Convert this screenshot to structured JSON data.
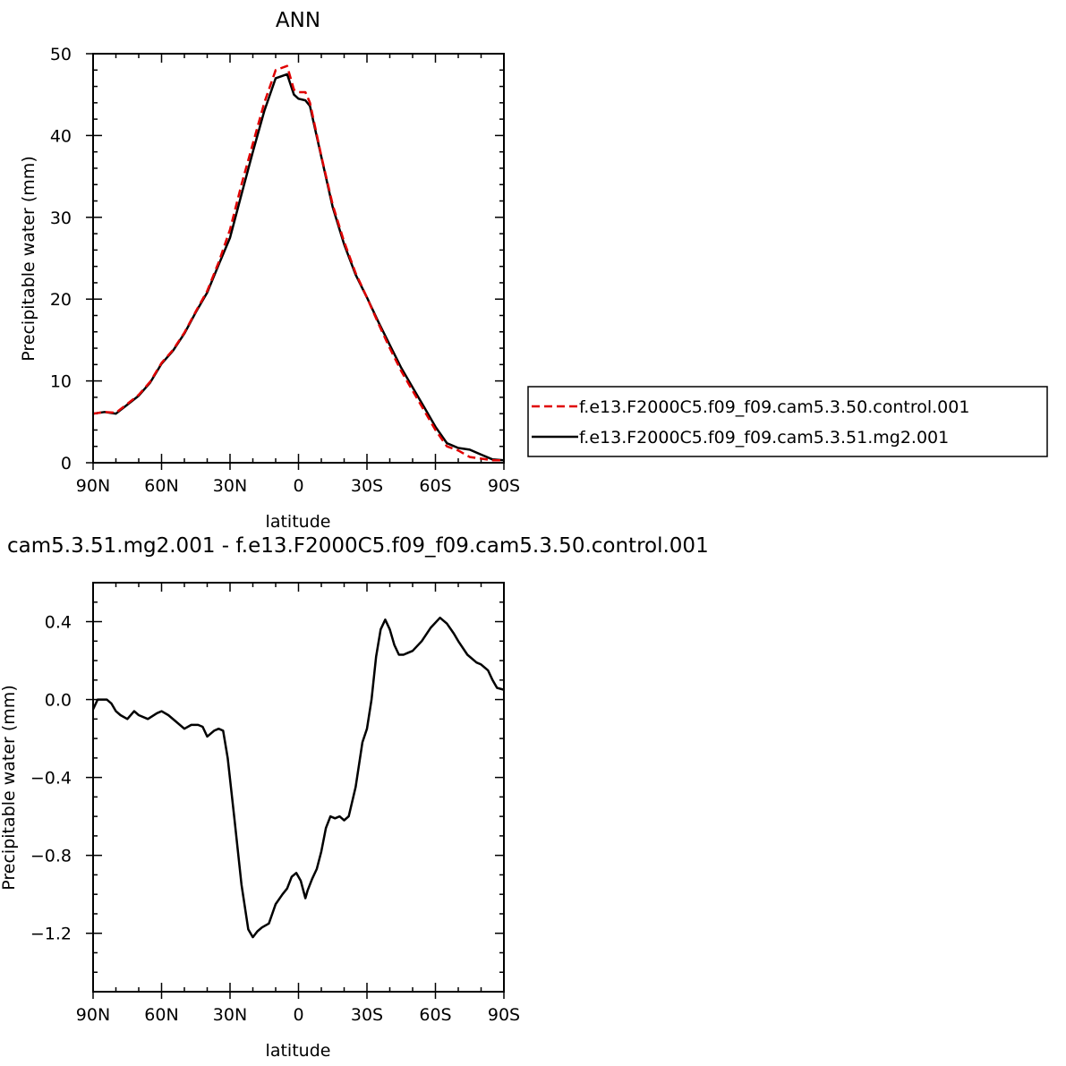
{
  "figure": {
    "top_title": "ANN",
    "bottom_title": "cam5.3.51.mg2.001 - f.e13.F2000C5.f09_f09.cam5.3.50.control.001"
  },
  "colors": {
    "control": "#e00000",
    "mg2": "#000000",
    "axis": "#000000"
  },
  "chart_data": [
    {
      "type": "line",
      "title": "ANN",
      "xlabel": "latitude",
      "ylabel": "Precipitable water (mm)",
      "xlim": [
        90,
        -90
      ],
      "ylim": [
        0,
        50
      ],
      "x_ticks": [
        {
          "v": 90,
          "label": "90N"
        },
        {
          "v": 60,
          "label": "60N"
        },
        {
          "v": 30,
          "label": "30N"
        },
        {
          "v": 0,
          "label": "0"
        },
        {
          "v": -30,
          "label": "30S"
        },
        {
          "v": -60,
          "label": "60S"
        },
        {
          "v": -90,
          "label": "90S"
        }
      ],
      "y_ticks": [
        {
          "v": 0,
          "label": "0"
        },
        {
          "v": 10,
          "label": "10"
        },
        {
          "v": 20,
          "label": "20"
        },
        {
          "v": 30,
          "label": "30"
        },
        {
          "v": 40,
          "label": "40"
        },
        {
          "v": 50,
          "label": "50"
        }
      ],
      "legend_position": "right",
      "series": [
        {
          "name": "f.e13.F2000C5.f09_f09.cam5.3.50.control.001",
          "color": "#e00000",
          "dash": "dashed",
          "x": [
            90,
            85,
            80,
            75,
            70,
            65,
            60,
            55,
            50,
            45,
            40,
            35,
            30,
            25,
            20,
            15,
            10,
            5,
            2,
            0,
            -3,
            -5,
            -10,
            -15,
            -20,
            -25,
            -30,
            -35,
            -40,
            -45,
            -50,
            -55,
            -60,
            -65,
            -70,
            -75,
            -80,
            -85,
            -90
          ],
          "y": [
            6.0,
            6.2,
            6.1,
            7.2,
            8.3,
            9.9,
            12.2,
            13.8,
            15.9,
            18.5,
            21.0,
            24.5,
            28.5,
            34.0,
            39.0,
            44.0,
            48.0,
            48.5,
            45.6,
            45.3,
            45.3,
            44.0,
            37.5,
            31.5,
            27.0,
            23.2,
            20.2,
            17.0,
            14.0,
            11.2,
            8.8,
            6.4,
            4.0,
            2.0,
            1.5,
            0.7,
            0.5,
            0.3,
            0.3
          ]
        },
        {
          "name": "f.e13.F2000C5.f09_f09.cam5.3.51.mg2.001",
          "color": "#000000",
          "dash": "solid",
          "x": [
            90,
            85,
            80,
            75,
            70,
            65,
            60,
            55,
            50,
            45,
            40,
            35,
            30,
            25,
            20,
            15,
            10,
            5,
            2,
            0,
            -3,
            -5,
            -10,
            -15,
            -20,
            -25,
            -30,
            -35,
            -40,
            -45,
            -50,
            -55,
            -60,
            -65,
            -70,
            -75,
            -80,
            -85,
            -90
          ],
          "y": [
            6.0,
            6.2,
            6.0,
            7.1,
            8.2,
            9.8,
            12.1,
            13.7,
            15.8,
            18.4,
            20.8,
            24.2,
            27.5,
            32.8,
            38.0,
            43.0,
            47.0,
            47.5,
            45.0,
            44.5,
            44.3,
            43.6,
            37.4,
            31.2,
            26.7,
            23.0,
            20.2,
            17.2,
            14.4,
            11.6,
            9.2,
            6.8,
            4.4,
            2.4,
            1.8,
            1.6,
            1.0,
            0.4,
            0.3
          ]
        }
      ]
    },
    {
      "type": "line",
      "title": "cam5.3.51.mg2.001 - f.e13.F2000C5.f09_f09.cam5.3.50.control.001",
      "xlabel": "latitude",
      "ylabel": "Precipitable water (mm)",
      "xlim": [
        90,
        -90
      ],
      "ylim": [
        -1.5,
        0.6
      ],
      "x_ticks": [
        {
          "v": 90,
          "label": "90N"
        },
        {
          "v": 60,
          "label": "60N"
        },
        {
          "v": 30,
          "label": "30N"
        },
        {
          "v": 0,
          "label": "0"
        },
        {
          "v": -30,
          "label": "30S"
        },
        {
          "v": -60,
          "label": "60S"
        },
        {
          "v": -90,
          "label": "90S"
        }
      ],
      "y_ticks": [
        {
          "v": 0.4,
          "label": "0.4"
        },
        {
          "v": 0.0,
          "label": "0.0"
        },
        {
          "v": -0.4,
          "label": "−0.4"
        },
        {
          "v": -0.8,
          "label": "−0.8"
        },
        {
          "v": -1.2,
          "label": "−1.2"
        }
      ],
      "series": [
        {
          "name": "",
          "color": "#000000",
          "dash": "solid",
          "x": [
            90,
            88,
            86,
            84,
            82,
            80,
            78,
            75,
            72,
            70,
            66,
            62,
            60,
            57,
            54,
            50,
            47,
            44,
            42,
            40,
            37,
            35,
            33,
            31,
            28,
            25,
            22,
            20,
            18,
            16,
            13,
            10,
            7,
            5,
            3,
            1,
            -1,
            -3,
            -4,
            -6,
            -8,
            -10,
            -12,
            -14,
            -16,
            -18,
            -20,
            -22,
            -25,
            -28,
            -30,
            -32,
            -34,
            -36,
            -38,
            -40,
            -42,
            -44,
            -46,
            -48,
            -50,
            -54,
            -58,
            -62,
            -65,
            -68,
            -70,
            -74,
            -78,
            -80,
            -83,
            -85,
            -87,
            -90
          ],
          "y": [
            -0.05,
            0.0,
            0.0,
            0.0,
            -0.02,
            -0.06,
            -0.08,
            -0.1,
            -0.06,
            -0.08,
            -0.1,
            -0.07,
            -0.06,
            -0.08,
            -0.11,
            -0.15,
            -0.13,
            -0.13,
            -0.14,
            -0.19,
            -0.16,
            -0.15,
            -0.16,
            -0.3,
            -0.62,
            -0.95,
            -1.18,
            -1.22,
            -1.19,
            -1.17,
            -1.15,
            -1.05,
            -1.0,
            -0.97,
            -0.91,
            -0.89,
            -0.93,
            -1.02,
            -0.98,
            -0.92,
            -0.87,
            -0.78,
            -0.66,
            -0.6,
            -0.61,
            -0.6,
            -0.62,
            -0.6,
            -0.45,
            -0.22,
            -0.15,
            0.0,
            0.22,
            0.36,
            0.41,
            0.36,
            0.28,
            0.23,
            0.23,
            0.24,
            0.25,
            0.3,
            0.37,
            0.42,
            0.39,
            0.34,
            0.3,
            0.23,
            0.19,
            0.18,
            0.15,
            0.1,
            0.06,
            0.05
          ]
        }
      ]
    }
  ]
}
